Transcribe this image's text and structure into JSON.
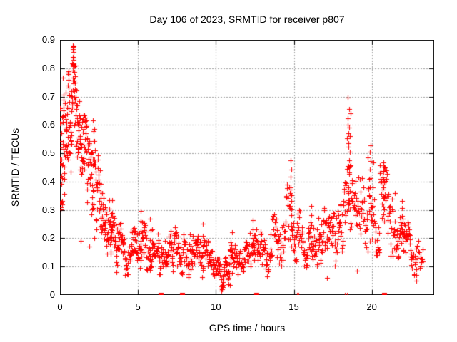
{
  "chart_data": {
    "type": "scatter",
    "title": "Day 106 of 2023, SRMTID for receiver p807",
    "xlabel": "GPS time / hours",
    "ylabel": "SRMTID / TECUs",
    "xlim": [
      0,
      24
    ],
    "ylim": [
      0,
      0.9
    ],
    "xticks": [
      {
        "v": 0,
        "label": "0"
      },
      {
        "v": 5,
        "label": "5"
      },
      {
        "v": 10,
        "label": "10"
      },
      {
        "v": 15,
        "label": "15"
      },
      {
        "v": 20,
        "label": "20"
      }
    ],
    "yticks": [
      {
        "v": 0.0,
        "label": "0"
      },
      {
        "v": 0.1,
        "label": "0.1"
      },
      {
        "v": 0.2,
        "label": "0.2"
      },
      {
        "v": 0.3,
        "label": "0.3"
      },
      {
        "v": 0.4,
        "label": "0.4"
      },
      {
        "v": 0.5,
        "label": "0.5"
      },
      {
        "v": 0.6,
        "label": "0.6"
      },
      {
        "v": 0.7,
        "label": "0.7"
      },
      {
        "v": 0.8,
        "label": "0.8"
      },
      {
        "v": 0.9,
        "label": "0.9"
      }
    ],
    "grid": true,
    "legend": null,
    "colors": {
      "marker": "#ff0000",
      "grid": "#a0a0a0",
      "axis": "#000000",
      "text": "#000000",
      "background": "#ffffff"
    },
    "seed": 42,
    "series": [
      {
        "name": "SRMTID",
        "marker": "plus",
        "color": "#ff0000",
        "band_bins_format": "[t_start,t_end,count,y_min,y_max]",
        "band_bins": [
          [
            0.0,
            0.25,
            30,
            0.3,
            0.8
          ],
          [
            0.25,
            0.5,
            28,
            0.33,
            0.72
          ],
          [
            0.5,
            0.75,
            28,
            0.42,
            0.8
          ],
          [
            0.75,
            1.0,
            30,
            0.5,
            0.88
          ],
          [
            1.0,
            1.25,
            24,
            0.45,
            0.76
          ],
          [
            1.25,
            1.5,
            22,
            0.35,
            0.66
          ],
          [
            1.5,
            1.75,
            22,
            0.3,
            0.64
          ],
          [
            1.75,
            2.0,
            20,
            0.26,
            0.55
          ],
          [
            2.0,
            2.25,
            20,
            0.28,
            0.6
          ],
          [
            2.25,
            2.5,
            18,
            0.22,
            0.52
          ],
          [
            2.5,
            2.75,
            18,
            0.16,
            0.44
          ],
          [
            2.75,
            3.0,
            18,
            0.14,
            0.38
          ],
          [
            3.0,
            3.25,
            18,
            0.13,
            0.34
          ],
          [
            3.25,
            3.5,
            18,
            0.12,
            0.32
          ],
          [
            3.5,
            3.75,
            16,
            0.1,
            0.28
          ],
          [
            3.75,
            4.0,
            16,
            0.09,
            0.26
          ],
          [
            4.0,
            4.5,
            28,
            0.07,
            0.2
          ],
          [
            4.5,
            5.0,
            28,
            0.08,
            0.24
          ],
          [
            5.0,
            5.5,
            28,
            0.08,
            0.26
          ],
          [
            5.5,
            6.0,
            28,
            0.08,
            0.26
          ],
          [
            6.0,
            6.5,
            28,
            0.07,
            0.22
          ],
          [
            6.5,
            7.0,
            28,
            0.09,
            0.23
          ],
          [
            7.0,
            7.5,
            28,
            0.08,
            0.24
          ],
          [
            7.5,
            8.0,
            28,
            0.07,
            0.22
          ],
          [
            8.0,
            8.5,
            28,
            0.06,
            0.22
          ],
          [
            8.5,
            9.0,
            28,
            0.06,
            0.22
          ],
          [
            9.0,
            9.5,
            28,
            0.05,
            0.22
          ],
          [
            9.5,
            10.0,
            26,
            0.04,
            0.16
          ],
          [
            10.0,
            10.5,
            32,
            0.02,
            0.13
          ],
          [
            10.5,
            10.9,
            26,
            0.03,
            0.14
          ],
          [
            10.9,
            11.3,
            24,
            0.05,
            0.18
          ],
          [
            11.3,
            12.0,
            34,
            0.07,
            0.2
          ],
          [
            12.0,
            12.5,
            26,
            0.09,
            0.22
          ],
          [
            12.5,
            13.0,
            26,
            0.1,
            0.26
          ],
          [
            13.0,
            13.5,
            24,
            0.06,
            0.2
          ],
          [
            13.5,
            14.0,
            24,
            0.1,
            0.29
          ],
          [
            14.0,
            14.5,
            24,
            0.1,
            0.32
          ],
          [
            14.5,
            15.0,
            22,
            0.14,
            0.4
          ],
          [
            15.0,
            15.5,
            24,
            0.1,
            0.3
          ],
          [
            15.5,
            16.0,
            26,
            0.09,
            0.26
          ],
          [
            16.0,
            16.5,
            26,
            0.1,
            0.28
          ],
          [
            16.5,
            17.0,
            26,
            0.1,
            0.31
          ],
          [
            17.0,
            17.5,
            26,
            0.08,
            0.28
          ],
          [
            17.5,
            18.0,
            26,
            0.1,
            0.3
          ],
          [
            18.0,
            18.4,
            20,
            0.12,
            0.42
          ],
          [
            18.4,
            18.75,
            18,
            0.22,
            0.58
          ],
          [
            18.75,
            19.25,
            24,
            0.1,
            0.42
          ],
          [
            19.25,
            19.75,
            24,
            0.15,
            0.44
          ],
          [
            19.75,
            20.1,
            18,
            0.18,
            0.5
          ],
          [
            20.1,
            20.5,
            20,
            0.14,
            0.38
          ],
          [
            20.5,
            21.0,
            26,
            0.2,
            0.46
          ],
          [
            21.0,
            21.5,
            26,
            0.13,
            0.36
          ],
          [
            21.5,
            22.0,
            28,
            0.13,
            0.28
          ],
          [
            22.0,
            22.5,
            28,
            0.12,
            0.26
          ],
          [
            22.5,
            22.9,
            20,
            0.07,
            0.23
          ],
          [
            22.9,
            23.3,
            12,
            0.05,
            0.2
          ]
        ],
        "spike_columns_format": "[t,count,y_min,y_max]",
        "spike_columns": [
          [
            0.85,
            8,
            0.72,
            0.88
          ],
          [
            2.1,
            5,
            0.46,
            0.62
          ],
          [
            3.3,
            5,
            0.15,
            0.33
          ],
          [
            5.15,
            6,
            0.12,
            0.3
          ],
          [
            5.8,
            5,
            0.12,
            0.27
          ],
          [
            9.2,
            5,
            0.1,
            0.25
          ],
          [
            11.0,
            5,
            0.08,
            0.22
          ],
          [
            12.4,
            6,
            0.12,
            0.26
          ],
          [
            14.8,
            12,
            0.17,
            0.47
          ],
          [
            16.1,
            6,
            0.15,
            0.31
          ],
          [
            18.5,
            14,
            0.3,
            0.695
          ],
          [
            18.6,
            8,
            0.33,
            0.64
          ],
          [
            19.9,
            10,
            0.26,
            0.535
          ],
          [
            20.78,
            12,
            0.26,
            0.47
          ],
          [
            21.95,
            6,
            0.2,
            0.33
          ]
        ],
        "extra_points": [
          [
            0.05,
            0.31
          ],
          [
            1.35,
            0.19
          ],
          [
            1.9,
            0.17
          ],
          [
            2.2,
            0.2
          ],
          [
            3.6,
            0.08
          ],
          [
            10.35,
            0.015
          ],
          [
            13.3,
            0.065
          ],
          [
            17.15,
            0.06
          ],
          [
            19.05,
            0.085
          ],
          [
            22.85,
            0.05
          ],
          [
            23.15,
            0.1
          ],
          [
            23.25,
            0.16
          ]
        ]
      },
      {
        "name": "zero-line squares",
        "marker": "filled-square",
        "color": "#ff0000",
        "points": [
          [
            6.45,
            0
          ],
          [
            7.85,
            0
          ],
          [
            12.6,
            0
          ],
          [
            20.8,
            0
          ]
        ]
      },
      {
        "name": "zero-line plusses",
        "marker": "plus",
        "color": "#ff0000",
        "points": [
          [
            15.2,
            0
          ],
          [
            15.32,
            0
          ],
          [
            18.28,
            0
          ],
          [
            18.4,
            0
          ]
        ]
      }
    ]
  }
}
